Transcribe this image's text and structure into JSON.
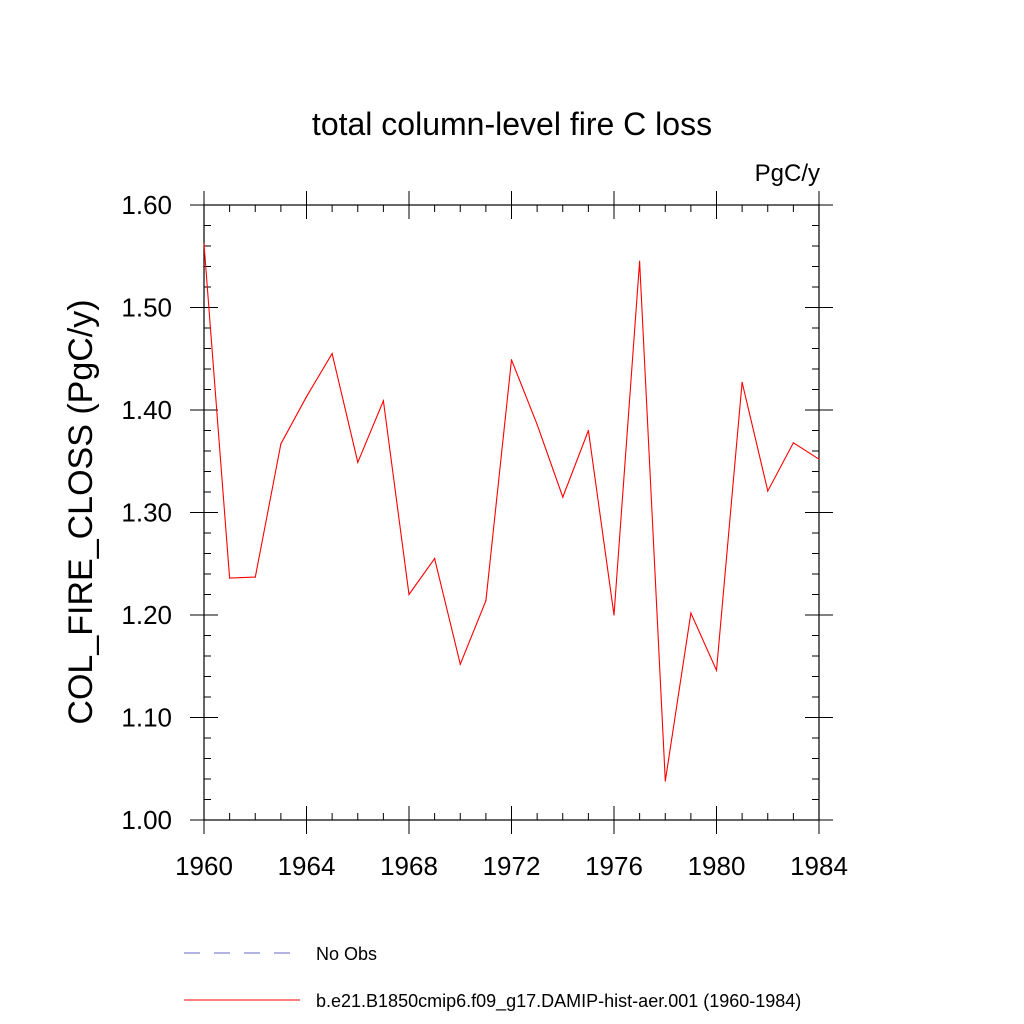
{
  "chart_data": {
    "type": "line",
    "title": "total column-level fire C loss",
    "units_label": "PgC/y",
    "ylabel": "COL_FIRE_CLOSS  (PgC/y)",
    "xlabel": "",
    "xlim": [
      1960,
      1984
    ],
    "ylim": [
      1.0,
      1.6
    ],
    "x_ticks": [
      1960,
      1964,
      1968,
      1972,
      1976,
      1980,
      1984
    ],
    "x_tick_labels": [
      "1960",
      "1964",
      "1968",
      "1972",
      "1976",
      "1980",
      "1984"
    ],
    "y_ticks": [
      1.0,
      1.1,
      1.2,
      1.3,
      1.4,
      1.5,
      1.6
    ],
    "y_tick_labels": [
      "1.00",
      "1.10",
      "1.20",
      "1.30",
      "1.40",
      "1.50",
      "1.60"
    ],
    "grid": false,
    "legend_position": "bottom",
    "series": [
      {
        "name": "No Obs",
        "color": "#6666cc",
        "style": "dashed",
        "x": [],
        "values": []
      },
      {
        "name": "b.e21.B1850cmip6.f09_g17.DAMIP-hist-aer.001 (1960-1984)",
        "color": "#ff0000",
        "style": "solid",
        "x": [
          1960,
          1961,
          1962,
          1963,
          1964,
          1965,
          1966,
          1967,
          1968,
          1969,
          1970,
          1971,
          1972,
          1973,
          1974,
          1975,
          1976,
          1977,
          1978,
          1979,
          1980,
          1981,
          1982,
          1983,
          1984
        ],
        "values": [
          1.562,
          1.236,
          1.237,
          1.367,
          1.413,
          1.455,
          1.349,
          1.409,
          1.22,
          1.255,
          1.152,
          1.214,
          1.449,
          1.386,
          1.315,
          1.38,
          1.2,
          1.545,
          1.038,
          1.202,
          1.146,
          1.427,
          1.321,
          1.368,
          1.352
        ]
      }
    ]
  }
}
